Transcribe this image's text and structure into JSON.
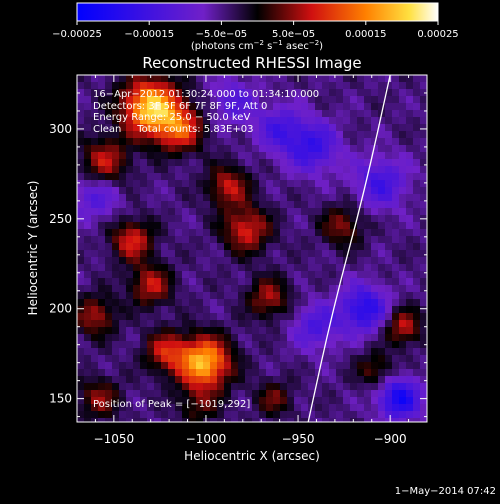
{
  "chart_data": {
    "type": "heatmap",
    "title": "Reconstructed RHESSI Image",
    "xlabel": "Heliocentric X (arcsec)",
    "ylabel": "Heliocentric Y (arcsec)",
    "xlim": [
      -1070,
      -880
    ],
    "ylim": [
      137,
      330
    ],
    "x_ticks": [
      -1050,
      -1000,
      -950,
      -900
    ],
    "x_tick_labels": [
      "−1050",
      "−1000",
      "−950",
      "−900"
    ],
    "y_ticks": [
      150,
      200,
      250,
      300
    ],
    "y_tick_labels": [
      "150",
      "200",
      "250",
      "300"
    ],
    "colorbar": {
      "range": [
        -0.00025,
        0.00025
      ],
      "ticks": [
        -0.00025,
        -0.00015,
        -5e-05,
        5e-05,
        0.00015,
        0.00025
      ],
      "tick_labels": [
        "−0.00025",
        "−0.00015",
        "−5.0e−05",
        "5.0e−05",
        "0.00015",
        "0.00025"
      ],
      "unit_main": "(photons cm",
      "unit_exp1": "−2",
      "unit_mid": " s",
      "unit_exp2": "−1",
      "unit_mid2": " asec",
      "unit_exp3": "−2",
      "unit_end": ")"
    },
    "annotations": {
      "time_range": "16−Apr−2012 01:30:24.000 to 01:34:10.000",
      "detectors": "Detectors: 3F 5F 6F 7F 8F 9F, Att 0",
      "energy": "Energy Range: 25.0 − 50.0 keV",
      "clean": "Clean     Total counts: 5.83E+03",
      "peak": "Position of Peak = [−1019,292]"
    },
    "sources": [
      {
        "x": -1030,
        "y": 312,
        "amp": 1.9,
        "sigma": 11
      },
      {
        "x": -1014,
        "y": 300,
        "amp": 1.1,
        "sigma": 9
      },
      {
        "x": -1001,
        "y": 170,
        "amp": 1.8,
        "sigma": 10
      },
      {
        "x": -1022,
        "y": 176,
        "amp": 0.9,
        "sigma": 8
      },
      {
        "x": -1055,
        "y": 282,
        "amp": 0.9,
        "sigma": 9
      },
      {
        "x": -1040,
        "y": 238,
        "amp": 1.0,
        "sigma": 8
      },
      {
        "x": -1030,
        "y": 213,
        "amp": 0.9,
        "sigma": 8
      },
      {
        "x": -1060,
        "y": 196,
        "amp": 0.8,
        "sigma": 8
      },
      {
        "x": -988,
        "y": 268,
        "amp": 0.9,
        "sigma": 8
      },
      {
        "x": -978,
        "y": 244,
        "amp": 1.0,
        "sigma": 9
      },
      {
        "x": -966,
        "y": 206,
        "amp": 0.8,
        "sigma": 8
      },
      {
        "x": -1058,
        "y": 150,
        "amp": 0.7,
        "sigma": 8
      },
      {
        "x": -1004,
        "y": 146,
        "amp": 0.5,
        "sigma": 8
      },
      {
        "x": -926,
        "y": 246,
        "amp": 0.7,
        "sigma": 8
      },
      {
        "x": -893,
        "y": 190,
        "amp": 0.9,
        "sigma": 7
      },
      {
        "x": -908,
        "y": 166,
        "amp": 0.6,
        "sigma": 7
      },
      {
        "x": -963,
        "y": 150,
        "amp": 0.6,
        "sigma": 7
      },
      {
        "x": -942,
        "y": 290,
        "amp": -0.9,
        "sigma": 10
      },
      {
        "x": -905,
        "y": 270,
        "amp": -0.8,
        "sigma": 10
      },
      {
        "x": -914,
        "y": 200,
        "amp": -1.1,
        "sigma": 9
      },
      {
        "x": -895,
        "y": 150,
        "amp": -1.3,
        "sigma": 8
      },
      {
        "x": -960,
        "y": 300,
        "amp": -0.7,
        "sigma": 9
      },
      {
        "x": -1060,
        "y": 262,
        "amp": -0.6,
        "sigma": 9
      },
      {
        "x": -985,
        "y": 315,
        "amp": -0.6,
        "sigma": 9
      },
      {
        "x": -940,
        "y": 190,
        "amp": -0.7,
        "sigma": 9
      }
    ],
    "limb_curve": [
      {
        "x": -944.5,
        "y": 137
      },
      {
        "x": -931,
        "y": 200
      },
      {
        "x": -914,
        "y": 265
      },
      {
        "x": -900,
        "y": 330
      }
    ]
  },
  "footer": {
    "timestamp": "1−May−2014 07:42"
  }
}
